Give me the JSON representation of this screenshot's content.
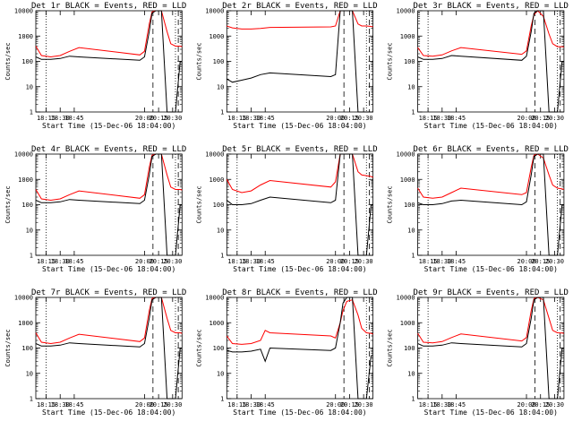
{
  "chart_data": [
    {
      "type": "line",
      "title": "Det 1r BLACK = Events, RED = LLD",
      "xlabel": "Start Time (15-Dec-06 18:04:00)",
      "ylabel": "Counts/sec",
      "yscale": "log",
      "ylim": [
        1,
        10000
      ],
      "xlim": [
        "18:04",
        "20:40"
      ],
      "x_ticks": [
        "18:15",
        "18:30",
        "18:45",
        "20:00",
        "20:15",
        "20:30"
      ],
      "y_ticks": [
        "1",
        "10",
        "100",
        "1000",
        "10000"
      ],
      "series": [
        {
          "color": "#ff0000",
          "x": [
            "18:04",
            "18:10",
            "18:20",
            "18:30",
            "18:40",
            "18:50",
            "19:55",
            "20:00",
            "20:05",
            "20:08",
            "20:12",
            "20:18",
            "20:24",
            "20:28",
            "20:33",
            "20:38",
            "20:40"
          ],
          "y": [
            400,
            170,
            150,
            170,
            250,
            350,
            180,
            250,
            3000,
            9000,
            10000,
            10000,
            1500,
            500,
            400,
            400,
            380
          ]
        },
        {
          "color": "#000000",
          "x": [
            "18:04",
            "18:10",
            "18:20",
            "18:30",
            "18:40",
            "18:50",
            "19:55",
            "20:00",
            "20:05",
            "20:08",
            "20:12",
            "20:18",
            "20:24",
            "20:28",
            "20:33",
            "20:38",
            "20:40"
          ],
          "y": [
            150,
            120,
            120,
            130,
            160,
            150,
            110,
            150,
            1500,
            8000,
            10000,
            10000,
            1,
            1,
            1,
            100,
            100
          ]
        }
      ]
    },
    {
      "type": "line",
      "title": "Det 2r BLACK = Events, RED = LLD",
      "xlabel": "Start Time (15-Dec-06 18:04:00)",
      "ylabel": "Counts/sec",
      "yscale": "log",
      "ylim": [
        1,
        10000
      ],
      "xlim": [
        "18:04",
        "20:40"
      ],
      "x_ticks": [
        "18:15",
        "18:30",
        "18:45",
        "20:00",
        "20:15",
        "20:30"
      ],
      "y_ticks": [
        "1",
        "10",
        "100",
        "1000",
        "10000"
      ],
      "series": [
        {
          "color": "#ff0000",
          "x": [
            "18:04",
            "18:10",
            "18:20",
            "18:30",
            "18:40",
            "18:50",
            "19:55",
            "20:00",
            "20:05",
            "20:08",
            "20:12",
            "20:18",
            "20:24",
            "20:28",
            "20:33",
            "20:38",
            "20:40"
          ],
          "y": [
            2500,
            2100,
            1900,
            1900,
            2000,
            2200,
            2300,
            2500,
            10000,
            10000,
            10000,
            10000,
            3000,
            2500,
            2500,
            2400,
            2300
          ]
        },
        {
          "color": "#000000",
          "x": [
            "18:04",
            "18:10",
            "18:20",
            "18:30",
            "18:40",
            "18:50",
            "19:55",
            "20:00",
            "20:05",
            "20:08",
            "20:12",
            "20:18",
            "20:24",
            "20:28",
            "20:33",
            "20:38",
            "20:40"
          ],
          "y": [
            20,
            15,
            18,
            22,
            30,
            35,
            25,
            30,
            10000,
            10000,
            10000,
            10000,
            1,
            1,
            1,
            1,
            1
          ]
        }
      ]
    },
    {
      "type": "line",
      "title": "Det 3r BLACK = Events, RED = LLD",
      "xlabel": "Start Time (15-Dec-06 18:04:00)",
      "ylabel": "Counts/sec",
      "yscale": "log",
      "ylim": [
        1,
        10000
      ],
      "xlim": [
        "18:04",
        "20:40"
      ],
      "x_ticks": [
        "18:15",
        "18:30",
        "18:45",
        "20:00",
        "20:15",
        "20:30"
      ],
      "y_ticks": [
        "1",
        "10",
        "100",
        "1000",
        "10000"
      ],
      "series": [
        {
          "color": "#ff0000",
          "x": [
            "18:04",
            "18:10",
            "18:20",
            "18:30",
            "18:40",
            "18:50",
            "19:55",
            "20:00",
            "20:05",
            "20:08",
            "20:12",
            "20:18",
            "20:24",
            "20:28",
            "20:33",
            "20:38",
            "20:40"
          ],
          "y": [
            350,
            170,
            160,
            180,
            260,
            350,
            190,
            260,
            2500,
            7000,
            10000,
            6000,
            1200,
            500,
            380,
            380,
            370
          ]
        },
        {
          "color": "#000000",
          "x": [
            "18:04",
            "18:10",
            "18:20",
            "18:30",
            "18:40",
            "18:50",
            "19:55",
            "20:00",
            "20:05",
            "20:08",
            "20:12",
            "20:18",
            "20:24",
            "20:28",
            "20:33",
            "20:38",
            "20:40"
          ],
          "y": [
            150,
            120,
            120,
            130,
            170,
            160,
            110,
            160,
            1500,
            8000,
            10000,
            10000,
            1,
            1,
            1,
            100,
            100
          ]
        }
      ]
    },
    {
      "type": "line",
      "title": "Det 4r BLACK = Events, RED = LLD",
      "xlabel": "Start Time (15-Dec-06 18:04:00)",
      "ylabel": "Counts/sec",
      "yscale": "log",
      "ylim": [
        1,
        10000
      ],
      "xlim": [
        "18:04",
        "20:40"
      ],
      "x_ticks": [
        "18:15",
        "18:30",
        "18:45",
        "20:00",
        "20:15",
        "20:30"
      ],
      "y_ticks": [
        "1",
        "10",
        "100",
        "1000",
        "10000"
      ],
      "series": [
        {
          "color": "#ff0000",
          "x": [
            "18:04",
            "18:10",
            "18:20",
            "18:30",
            "18:40",
            "18:50",
            "19:55",
            "20:00",
            "20:05",
            "20:08",
            "20:12",
            "20:18",
            "20:24",
            "20:28",
            "20:33",
            "20:38",
            "20:40"
          ],
          "y": [
            400,
            170,
            150,
            170,
            250,
            350,
            180,
            250,
            3000,
            9000,
            10000,
            10000,
            1500,
            500,
            400,
            400,
            380
          ]
        },
        {
          "color": "#000000",
          "x": [
            "18:04",
            "18:10",
            "18:20",
            "18:30",
            "18:40",
            "18:50",
            "19:55",
            "20:00",
            "20:05",
            "20:08",
            "20:12",
            "20:18",
            "20:24",
            "20:28",
            "20:33",
            "20:38",
            "20:40"
          ],
          "y": [
            150,
            120,
            120,
            130,
            160,
            150,
            110,
            150,
            1500,
            8000,
            10000,
            10000,
            1,
            1,
            1,
            100,
            100
          ]
        }
      ]
    },
    {
      "type": "line",
      "title": "Det 5r BLACK = Events, RED = LLD",
      "xlabel": "Start Time (15-Dec-06 18:04:00)",
      "ylabel": "Counts/sec",
      "yscale": "log",
      "ylim": [
        1,
        10000
      ],
      "xlim": [
        "18:04",
        "20:40"
      ],
      "x_ticks": [
        "18:15",
        "18:30",
        "18:45",
        "20:00",
        "20:15",
        "20:30"
      ],
      "y_ticks": [
        "1",
        "10",
        "100",
        "1000",
        "10000"
      ],
      "series": [
        {
          "color": "#ff0000",
          "x": [
            "18:04",
            "18:10",
            "18:20",
            "18:30",
            "18:40",
            "18:50",
            "19:55",
            "20:00",
            "20:05",
            "20:08",
            "20:12",
            "20:18",
            "20:24",
            "20:28",
            "20:33",
            "20:38",
            "20:40"
          ],
          "y": [
            1000,
            400,
            300,
            350,
            600,
            900,
            500,
            800,
            10000,
            10000,
            10000,
            10000,
            2000,
            1500,
            1400,
            1300,
            1200
          ]
        },
        {
          "color": "#000000",
          "x": [
            "18:04",
            "18:10",
            "18:20",
            "18:30",
            "18:40",
            "18:50",
            "19:55",
            "20:00",
            "20:05",
            "20:08",
            "20:12",
            "20:18",
            "20:24",
            "20:28",
            "20:33",
            "20:38",
            "20:40"
          ],
          "y": [
            150,
            100,
            100,
            110,
            150,
            200,
            120,
            150,
            10000,
            10000,
            10000,
            10000,
            1,
            1,
            1,
            100,
            100
          ]
        }
      ]
    },
    {
      "type": "line",
      "title": "Det 6r BLACK = Events, RED = LLD",
      "xlabel": "Start Time (15-Dec-06 18:04:00)",
      "ylabel": "Counts/sec",
      "yscale": "log",
      "ylim": [
        1,
        10000
      ],
      "xlim": [
        "18:04",
        "20:40"
      ],
      "x_ticks": [
        "18:15",
        "18:30",
        "18:45",
        "20:00",
        "20:15",
        "20:30"
      ],
      "y_ticks": [
        "1",
        "10",
        "100",
        "1000",
        "10000"
      ],
      "series": [
        {
          "color": "#ff0000",
          "x": [
            "18:04",
            "18:10",
            "18:20",
            "18:30",
            "18:40",
            "18:50",
            "19:55",
            "20:00",
            "20:05",
            "20:08",
            "20:12",
            "20:18",
            "20:24",
            "20:28",
            "20:33",
            "20:38",
            "20:40"
          ],
          "y": [
            450,
            200,
            180,
            200,
            300,
            450,
            250,
            300,
            3000,
            9000,
            10000,
            7000,
            1500,
            600,
            450,
            420,
            400
          ]
        },
        {
          "color": "#000000",
          "x": [
            "18:04",
            "18:10",
            "18:20",
            "18:30",
            "18:40",
            "18:50",
            "19:55",
            "20:00",
            "20:05",
            "20:08",
            "20:12",
            "20:18",
            "20:24",
            "20:28",
            "20:33",
            "20:38",
            "20:40"
          ],
          "y": [
            120,
            100,
            100,
            110,
            140,
            150,
            100,
            130,
            1500,
            8000,
            10000,
            10000,
            1,
            1,
            1,
            100,
            100
          ]
        }
      ]
    },
    {
      "type": "line",
      "title": "Det 7r BLACK = Events, RED = LLD",
      "xlabel": "Start Time (15-Dec-06 18:04:00)",
      "ylabel": "Counts/sec",
      "yscale": "log",
      "ylim": [
        1,
        10000
      ],
      "xlim": [
        "18:04",
        "20:40"
      ],
      "x_ticks": [
        "18:15",
        "18:30",
        "18:45",
        "20:00",
        "20:15",
        "20:30"
      ],
      "y_ticks": [
        "1",
        "10",
        "100",
        "1000",
        "10000"
      ],
      "series": [
        {
          "color": "#ff0000",
          "x": [
            "18:04",
            "18:10",
            "18:20",
            "18:30",
            "18:40",
            "18:50",
            "19:55",
            "20:00",
            "20:05",
            "20:08",
            "20:12",
            "20:18",
            "20:24",
            "20:28",
            "20:33",
            "20:38",
            "20:40"
          ],
          "y": [
            400,
            170,
            150,
            170,
            250,
            350,
            180,
            250,
            3000,
            9000,
            10000,
            10000,
            1500,
            500,
            400,
            400,
            380
          ]
        },
        {
          "color": "#000000",
          "x": [
            "18:04",
            "18:10",
            "18:20",
            "18:30",
            "18:40",
            "18:50",
            "19:55",
            "20:00",
            "20:05",
            "20:08",
            "20:12",
            "20:18",
            "20:24",
            "20:28",
            "20:33",
            "20:38",
            "20:40"
          ],
          "y": [
            150,
            120,
            120,
            130,
            160,
            150,
            110,
            150,
            1500,
            8000,
            10000,
            10000,
            1,
            1,
            1,
            100,
            100
          ]
        }
      ]
    },
    {
      "type": "line",
      "title": "Det 8r BLACK = Events, RED = LLD",
      "xlabel": "Start Time (15-Dec-06 18:04:00)",
      "ylabel": "Counts/sec",
      "yscale": "log",
      "ylim": [
        1,
        10000
      ],
      "xlim": [
        "18:04",
        "20:40"
      ],
      "x_ticks": [
        "18:15",
        "18:30",
        "18:45",
        "20:00",
        "20:15",
        "20:30"
      ],
      "y_ticks": [
        "1",
        "10",
        "100",
        "1000",
        "10000"
      ],
      "series": [
        {
          "color": "#ff0000",
          "x": [
            "18:04",
            "18:10",
            "18:20",
            "18:30",
            "18:40",
            "18:45",
            "18:50",
            "19:55",
            "20:00",
            "20:05",
            "20:08",
            "20:12",
            "20:18",
            "20:24",
            "20:28",
            "20:33",
            "20:38",
            "20:40"
          ],
          "y": [
            300,
            150,
            140,
            150,
            200,
            500,
            400,
            300,
            250,
            1000,
            3000,
            7000,
            8000,
            2000,
            600,
            400,
            380,
            350
          ]
        },
        {
          "color": "#000000",
          "x": [
            "18:04",
            "18:10",
            "18:20",
            "18:30",
            "18:40",
            "18:45",
            "18:50",
            "19:55",
            "20:00",
            "20:05",
            "20:08",
            "20:12",
            "20:18",
            "20:24",
            "20:28",
            "20:33",
            "20:38",
            "20:40"
          ],
          "y": [
            80,
            70,
            70,
            75,
            90,
            30,
            100,
            80,
            100,
            1000,
            6000,
            10000,
            10000,
            1,
            1,
            1,
            50,
            50
          ]
        }
      ]
    },
    {
      "type": "line",
      "title": "Det 9r BLACK = Events, RED = LLD",
      "xlabel": "Start Time (15-Dec-06 18:04:00)",
      "ylabel": "Counts/sec",
      "yscale": "log",
      "ylim": [
        1,
        10000
      ],
      "xlim": [
        "18:04",
        "20:40"
      ],
      "x_ticks": [
        "18:15",
        "18:30",
        "18:45",
        "20:00",
        "20:15",
        "20:30"
      ],
      "y_ticks": [
        "1",
        "10",
        "100",
        "1000",
        "10000"
      ],
      "series": [
        {
          "color": "#ff0000",
          "x": [
            "18:04",
            "18:10",
            "18:20",
            "18:30",
            "18:40",
            "18:50",
            "19:55",
            "20:00",
            "20:05",
            "20:08",
            "20:12",
            "20:18",
            "20:24",
            "20:28",
            "20:33",
            "20:38",
            "20:40"
          ],
          "y": [
            380,
            170,
            160,
            180,
            260,
            360,
            190,
            260,
            3000,
            9000,
            10000,
            8000,
            1500,
            500,
            400,
            390,
            380
          ]
        },
        {
          "color": "#000000",
          "x": [
            "18:04",
            "18:10",
            "18:20",
            "18:30",
            "18:40",
            "18:50",
            "19:55",
            "20:00",
            "20:05",
            "20:08",
            "20:12",
            "20:18",
            "20:24",
            "20:28",
            "20:33",
            "20:38",
            "20:40"
          ],
          "y": [
            150,
            120,
            120,
            130,
            160,
            150,
            110,
            150,
            1500,
            8000,
            10000,
            10000,
            1,
            1,
            1,
            100,
            100
          ]
        }
      ]
    }
  ]
}
